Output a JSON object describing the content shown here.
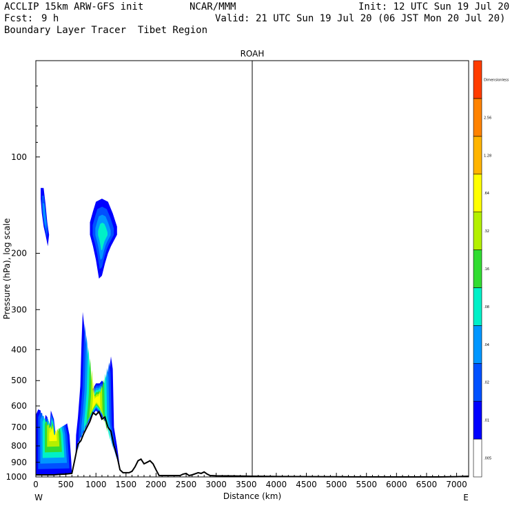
{
  "header": {
    "model": "ACCLIP 15km ARW-GFS init",
    "org": "NCAR/MMM",
    "init": "Init: 12 UTC Sun 19 Jul 20",
    "fcst_label": "Fcst:",
    "fcst_value": "9 h",
    "valid": "Valid: 21 UTC Sun 19 Jul 20 (06 JST Mon 20 Jul 20)",
    "field": "Boundary Layer Tracer  Tibet Region"
  },
  "chart_data": {
    "type": "heatmap",
    "title": "ROAH",
    "xlabel": "Distance (km)",
    "ylabel": "Pressure (hPa), log scale",
    "y_scale": "log",
    "xlim": [
      0,
      7200
    ],
    "ylim": [
      1000,
      50
    ],
    "x_ticks": [
      0,
      500,
      1000,
      1500,
      2000,
      2500,
      3000,
      3500,
      4000,
      4500,
      5000,
      5500,
      6000,
      6500,
      7000
    ],
    "y_ticks": [
      100,
      200,
      300,
      400,
      500,
      600,
      700,
      800,
      900,
      1000
    ],
    "x_end_labels": {
      "left": "W",
      "right": "E"
    },
    "marker_line_km": 3600,
    "colorbar": {
      "labels": [
        ".005",
        ".01",
        ".02",
        ".04",
        ".08",
        ".16",
        ".32",
        ".64",
        "1.28",
        "2.56",
        "Dimensionless"
      ],
      "colors": [
        "#ffffff",
        "#0000ff",
        "#0050ff",
        "#0096ff",
        "#00f0c8",
        "#32dc32",
        "#b4f000",
        "#ffff00",
        "#ffb400",
        "#ff8200",
        "#ff3c00"
      ]
    },
    "terrain_km_hpa": [
      [
        0,
        985
      ],
      [
        100,
        985
      ],
      [
        200,
        985
      ],
      [
        300,
        985
      ],
      [
        400,
        982
      ],
      [
        500,
        980
      ],
      [
        600,
        975
      ],
      [
        650,
        880
      ],
      [
        700,
        790
      ],
      [
        750,
        770
      ],
      [
        800,
        730
      ],
      [
        850,
        700
      ],
      [
        900,
        670
      ],
      [
        950,
        630
      ],
      [
        1000,
        640
      ],
      [
        1050,
        625
      ],
      [
        1100,
        660
      ],
      [
        1150,
        650
      ],
      [
        1200,
        700
      ],
      [
        1250,
        720
      ],
      [
        1300,
        800
      ],
      [
        1350,
        860
      ],
      [
        1400,
        950
      ],
      [
        1450,
        970
      ],
      [
        1500,
        970
      ],
      [
        1550,
        970
      ],
      [
        1600,
        960
      ],
      [
        1650,
        930
      ],
      [
        1700,
        890
      ],
      [
        1750,
        880
      ],
      [
        1800,
        910
      ],
      [
        1850,
        900
      ],
      [
        1900,
        890
      ],
      [
        1950,
        910
      ],
      [
        2000,
        950
      ],
      [
        2050,
        990
      ],
      [
        2100,
        990
      ],
      [
        2200,
        990
      ],
      [
        2300,
        990
      ],
      [
        2400,
        990
      ],
      [
        2450,
        980
      ],
      [
        2500,
        975
      ],
      [
        2550,
        990
      ],
      [
        2600,
        985
      ],
      [
        2700,
        970
      ],
      [
        2750,
        975
      ],
      [
        2800,
        965
      ],
      [
        2850,
        980
      ],
      [
        2900,
        990
      ],
      [
        3000,
        992
      ],
      [
        3300,
        993
      ],
      [
        3600,
        995
      ],
      [
        4000,
        997
      ],
      [
        5000,
        999
      ],
      [
        6000,
        1000
      ],
      [
        6700,
        1000
      ],
      [
        7000,
        998
      ],
      [
        7200,
        995
      ]
    ],
    "plumes": [
      {
        "name": "west-boundary-layer",
        "outline_km_hpa": [
          [
            0,
            985
          ],
          [
            600,
            978
          ],
          [
            590,
            900
          ],
          [
            560,
            740
          ],
          [
            520,
            680
          ],
          [
            480,
            690
          ],
          [
            450,
            800
          ],
          [
            380,
            800
          ],
          [
            330,
            740
          ],
          [
            300,
            660
          ],
          [
            250,
            620
          ],
          [
            230,
            700
          ],
          [
            190,
            650
          ],
          [
            160,
            640
          ],
          [
            130,
            720
          ],
          [
            100,
            740
          ],
          [
            80,
            620
          ],
          [
            40,
            615
          ],
          [
            0,
            640
          ]
        ],
        "max_level": 7
      },
      {
        "name": "central-upslope",
        "outline_km_hpa": [
          [
            660,
            870
          ],
          [
            700,
            780
          ],
          [
            800,
            720
          ],
          [
            900,
            660
          ],
          [
            1000,
            620
          ],
          [
            1100,
            650
          ],
          [
            1200,
            690
          ],
          [
            1300,
            770
          ],
          [
            1350,
            870
          ],
          [
            1400,
            940
          ],
          [
            1350,
            800
          ],
          [
            1300,
            700
          ],
          [
            1280,
            460
          ],
          [
            1250,
            420
          ],
          [
            1220,
            470
          ],
          [
            1180,
            500
          ],
          [
            1140,
            510
          ],
          [
            1100,
            500
          ],
          [
            1060,
            510
          ],
          [
            1000,
            510
          ],
          [
            950,
            530
          ],
          [
            900,
            530
          ],
          [
            860,
            560
          ],
          [
            830,
            440
          ],
          [
            800,
            330
          ],
          [
            780,
            305
          ],
          [
            760,
            380
          ],
          [
            740,
            520
          ],
          [
            700,
            650
          ],
          [
            670,
            740
          ]
        ],
        "max_level": 7
      },
      {
        "name": "upper-left-blob",
        "outline_km_hpa": [
          [
            80,
            125
          ],
          [
            130,
            125
          ],
          [
            160,
            140
          ],
          [
            190,
            160
          ],
          [
            220,
            175
          ],
          [
            200,
            190
          ],
          [
            160,
            175
          ],
          [
            130,
            165
          ],
          [
            100,
            150
          ],
          [
            80,
            135
          ]
        ],
        "max_level": 3
      },
      {
        "name": "upper-center-blob",
        "outline_km_hpa": [
          [
            900,
            160
          ],
          [
            950,
            148
          ],
          [
            1000,
            138
          ],
          [
            1100,
            135
          ],
          [
            1200,
            138
          ],
          [
            1280,
            150
          ],
          [
            1350,
            165
          ],
          [
            1350,
            175
          ],
          [
            1250,
            190
          ],
          [
            1200,
            200
          ],
          [
            1150,
            215
          ],
          [
            1100,
            235
          ],
          [
            1050,
            240
          ],
          [
            1000,
            210
          ],
          [
            950,
            190
          ],
          [
            900,
            175
          ]
        ],
        "max_level": 4
      }
    ]
  }
}
